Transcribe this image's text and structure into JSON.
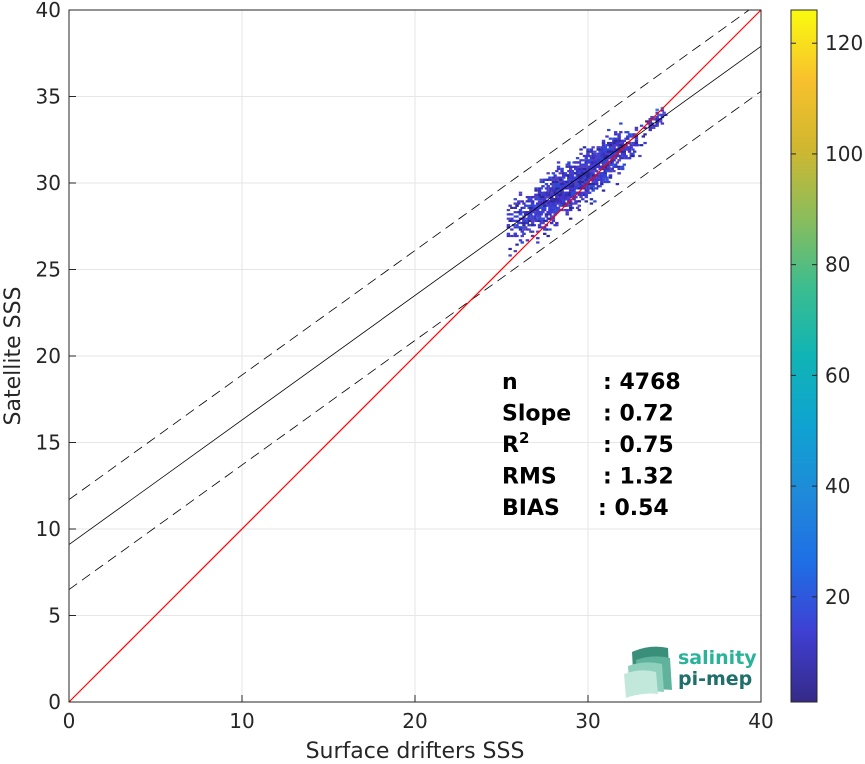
{
  "chart_data": {
    "type": "scatter",
    "subtype": "density-heatmap",
    "title": "",
    "xlabel": "Surface drifters SSS",
    "ylabel": "Satellite SSS",
    "xlim": [
      0,
      40
    ],
    "ylim": [
      0,
      40
    ],
    "x_ticks": [
      "0",
      "10",
      "20",
      "30",
      "40"
    ],
    "y_ticks": [
      "0",
      "5",
      "10",
      "15",
      "20",
      "25",
      "30",
      "35",
      "40"
    ],
    "grid": true,
    "reference_line": {
      "description": "1:1 line",
      "slope": 1,
      "intercept": 0,
      "color": "#ff0000"
    },
    "fit_line": {
      "slope": 0.72,
      "intercept": 9.1,
      "color": "#000000"
    },
    "fit_bounds": [
      {
        "slope": 0.72,
        "intercept": 11.7
      },
      {
        "slope": 0.72,
        "intercept": 6.5
      }
    ],
    "density_cloud": {
      "x_range": [
        25.3,
        34.4
      ],
      "y_range": [
        25.3,
        34.9
      ],
      "core": [
        {
          "x": 29.5,
          "y": 30.3,
          "spread_x": 1.2,
          "spread_y": 1.0
        },
        {
          "x": 31.3,
          "y": 31.8,
          "spread_x": 0.8,
          "spread_y": 0.8
        },
        {
          "x": 27.3,
          "y": 28.7,
          "spread_x": 1.2,
          "spread_y": 1.2
        },
        {
          "x": 33.8,
          "y": 33.7,
          "spread_x": 0.3,
          "spread_y": 0.4
        }
      ]
    },
    "colorbar": {
      "min": 1,
      "max": 126,
      "ticks": [
        "20",
        "40",
        "60",
        "80",
        "100",
        "120"
      ],
      "tick_values": [
        20,
        40,
        60,
        80,
        100,
        120
      ],
      "colormap": "parula"
    },
    "stats": [
      {
        "label": "n",
        "value": ": 4768"
      },
      {
        "label": "Slope",
        "value": ": 0.72"
      },
      {
        "label": "R",
        "superscript": "2",
        "value": ": 0.75"
      },
      {
        "label": "RMS",
        "value": ": 1.32"
      },
      {
        "label": "BIAS",
        "value": ": 0.54"
      }
    ]
  },
  "logo": {
    "line1": "salinity",
    "line2": "pi-mep"
  }
}
